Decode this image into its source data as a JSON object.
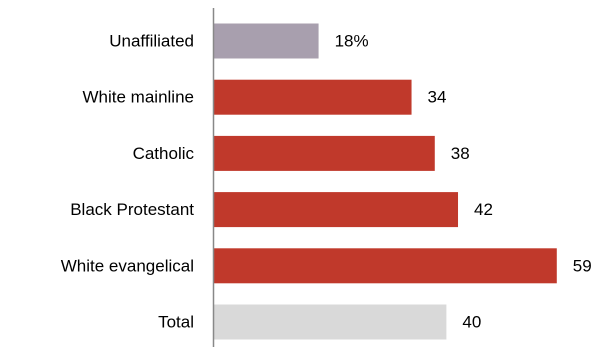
{
  "chart_data": {
    "type": "bar",
    "orientation": "horizontal",
    "categories": [
      "Unaffiliated",
      "White mainline",
      "Catholic",
      "Black Protestant",
      "White evangelical",
      "Total"
    ],
    "values": [
      18,
      34,
      38,
      42,
      59,
      40
    ],
    "value_labels": [
      "18%",
      "34",
      "38",
      "42",
      "59",
      "40"
    ],
    "bar_colors": [
      "#a89fae",
      "#c0392b",
      "#c0392b",
      "#c0392b",
      "#c0392b",
      "#d9d9d9"
    ],
    "title": "",
    "xlabel": "",
    "ylabel": "",
    "xlim": [
      0,
      100
    ],
    "grid": false,
    "legend": "none"
  },
  "colors": {
    "axis": "#888888",
    "text": "#000000"
  }
}
